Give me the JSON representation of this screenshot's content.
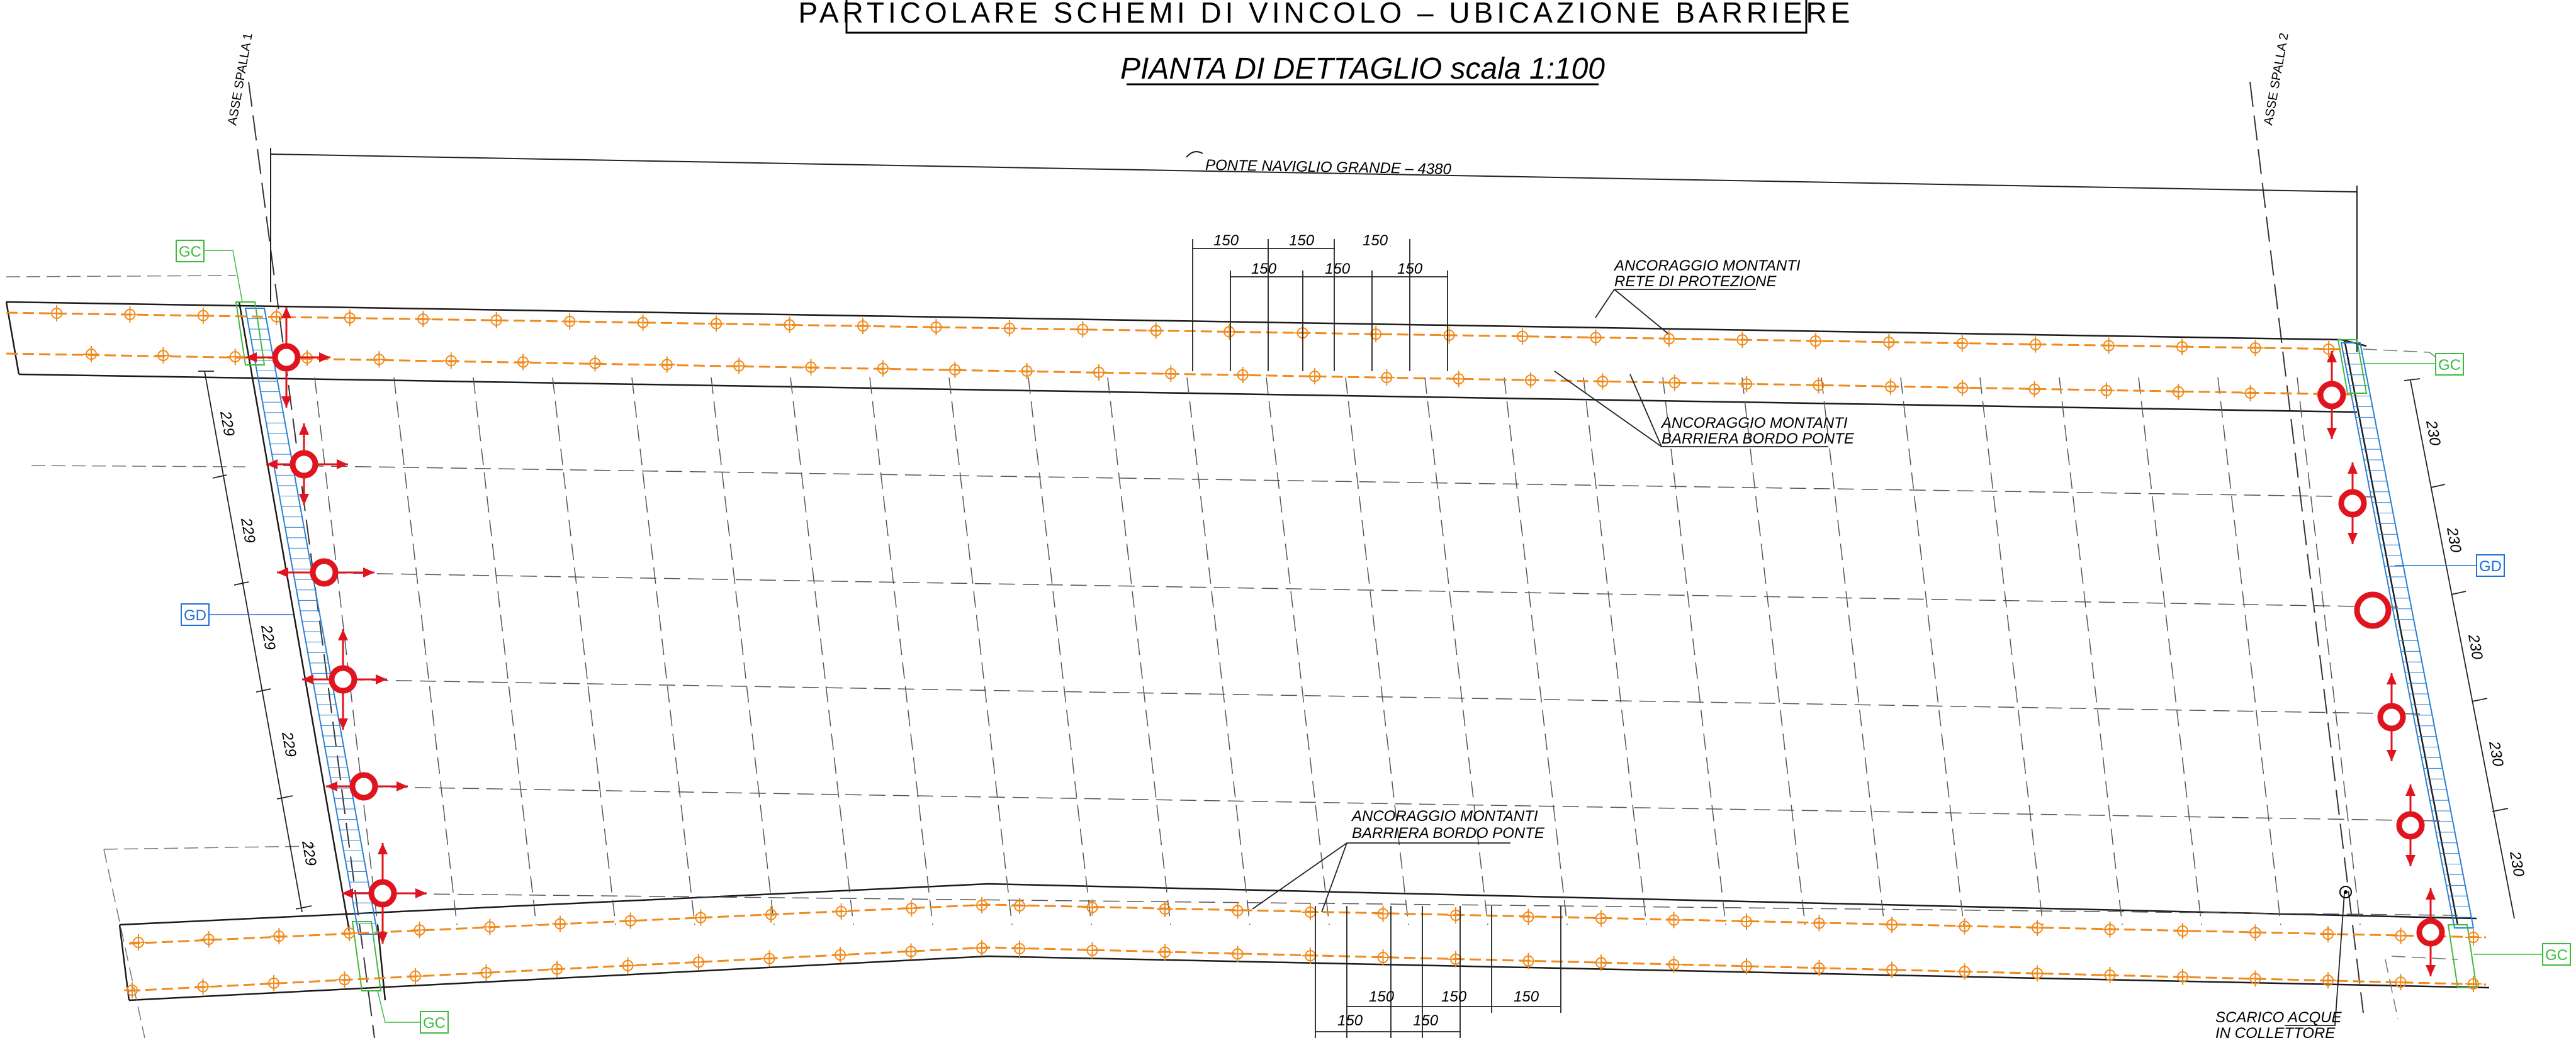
{
  "title": "PARTICOLARE SCHEMI DI VINCOLO – UBICAZIONE BARRIERE",
  "subtitle": "PIANTA DI DETTAGLIO  scala 1:100",
  "bridge_label": "PONTE NAVIGLIO GRANDE – 4380",
  "axis_labels": {
    "left": "ASSE SPALLA 1",
    "right": "ASSE SPALLA 2"
  },
  "annotations": {
    "net_anchor": [
      "ANCORAGGIO MONTANTI",
      "RETE DI PROTEZIONE"
    ],
    "barrier_anchor_top": [
      "ANCORAGGIO MONTANTI",
      "BARRIERA BORDO PONTE"
    ],
    "barrier_anchor_bottom": [
      "ANCORAGGIO MONTANTI",
      "BARRIERA BORDO PONTE"
    ],
    "drain": [
      "SCARICO ACQUE",
      "IN COLLETTORE"
    ]
  },
  "dimensions": {
    "left_spacing": [
      "229",
      "229",
      "229",
      "229",
      "229"
    ],
    "right_spacing": [
      "230",
      "230",
      "230",
      "230",
      "230"
    ],
    "top_row_a": [
      "150",
      "150",
      "150"
    ],
    "top_row_b": [
      "150",
      "150",
      "150"
    ],
    "bottom_row_a": [
      "150",
      "150",
      "150"
    ],
    "bottom_row_b": [
      "150",
      "150"
    ]
  },
  "tags": {
    "gc": "GC",
    "gd": "GD"
  },
  "colors": {
    "line": "#1a1a1a",
    "anchor": "#f08a1c",
    "bearing": "#e0141e",
    "abutment": "#2a7fd4",
    "gc_tag": "#3cba3c",
    "gd_tag": "#1e6fd9"
  }
}
